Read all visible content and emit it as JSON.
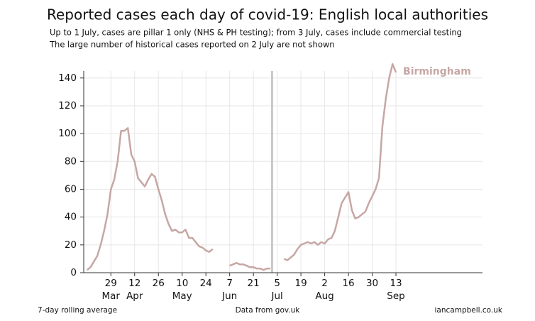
{
  "chart_data": {
    "type": "line",
    "title": "Reported cases each day of covid-19: English local authorities",
    "subtitle": [
      "Up to 1 July, cases are pillar 1 only (NHS & PH testing); from 3 July, cases include commercial testing",
      "The large number of historical cases reported on 2 July are not shown"
    ],
    "footer": {
      "left": "7-day rolling average",
      "center": "Data from gov.uk",
      "right": "iancampbell.co.uk"
    },
    "x": [
      "15 Mar",
      "17 Mar",
      "19 Mar",
      "21 Mar",
      "23 Mar",
      "25 Mar",
      "27 Mar",
      "29 Mar",
      "31 Mar",
      "2 Apr",
      "4 Apr",
      "6 Apr",
      "8 Apr",
      "10 Apr",
      "12 Apr",
      "14 Apr",
      "16 Apr",
      "18 Apr",
      "20 Apr",
      "22 Apr",
      "24 Apr",
      "26 Apr",
      "28 Apr",
      "30 Apr",
      "2 May",
      "4 May",
      "6 May",
      "8 May",
      "10 May",
      "12 May",
      "14 May",
      "16 May",
      "18 May",
      "20 May",
      "22 May",
      "24 May",
      "26 May",
      "28 May",
      "30 May",
      "1 Jun",
      "3 Jun",
      "5 Jun",
      "7 Jun",
      "9 Jun",
      "11 Jun",
      "13 Jun",
      "15 Jun",
      "17 Jun",
      "19 Jun",
      "21 Jun",
      "23 Jun",
      "25 Jun",
      "27 Jun",
      "29 Jun",
      "1 Jul",
      "3 Jul",
      "5 Jul",
      "7 Jul",
      "9 Jul",
      "11 Jul",
      "13 Jul",
      "15 Jul",
      "17 Jul",
      "19 Jul",
      "21 Jul",
      "23 Jul",
      "25 Jul",
      "27 Jul",
      "29 Jul",
      "31 Jul",
      "2 Aug",
      "4 Aug",
      "6 Aug",
      "8 Aug",
      "10 Aug",
      "12 Aug",
      "14 Aug",
      "16 Aug",
      "18 Aug",
      "20 Aug",
      "22 Aug",
      "24 Aug",
      "26 Aug",
      "28 Aug",
      "30 Aug",
      "1 Sep",
      "3 Sep",
      "5 Sep",
      "7 Sep",
      "9 Sep",
      "11 Sep",
      "13 Sep"
    ],
    "series": [
      {
        "name": "Birmingham",
        "color": "#c6a7a4",
        "values": [
          2,
          4,
          8,
          12,
          20,
          30,
          42,
          60,
          67,
          80,
          102,
          102,
          104,
          85,
          80,
          68,
          65,
          62,
          67,
          71,
          69,
          60,
          52,
          42,
          35,
          30,
          31,
          29,
          29,
          31,
          25,
          25,
          22,
          19,
          18,
          16,
          15,
          17,
          null,
          null,
          null,
          null,
          5,
          6,
          7,
          6,
          6,
          5,
          4,
          4,
          3,
          3,
          2,
          3,
          3,
          null,
          null,
          null,
          10,
          9,
          11,
          13,
          17,
          20,
          21,
          22,
          21,
          22,
          20,
          22,
          21,
          24,
          25,
          30,
          40,
          50,
          54,
          58,
          45,
          39,
          40,
          42,
          44,
          50,
          55,
          60,
          68,
          105,
          125,
          140,
          150,
          144
        ]
      }
    ],
    "xlim": [
      "13 Mar",
      "3 Nov"
    ],
    "ylim": [
      0,
      145
    ],
    "yticks": [
      0,
      20,
      40,
      60,
      80,
      100,
      120,
      140
    ],
    "xticks": [
      {
        "value": "29 Mar",
        "label": "29",
        "month": "Mar"
      },
      {
        "value": "12 Apr",
        "label": "12",
        "month": "Apr"
      },
      {
        "value": "26 Apr",
        "label": "26"
      },
      {
        "value": "10 May",
        "label": "10",
        "month": "May"
      },
      {
        "value": "24 May",
        "label": "24"
      },
      {
        "value": "7 Jun",
        "label": "7",
        "month": "Jun"
      },
      {
        "value": "21 Jun",
        "label": "21"
      },
      {
        "value": "5 Jul",
        "label": "5",
        "month": "Jul"
      },
      {
        "value": "19 Jul",
        "label": "19"
      },
      {
        "value": "2 Aug",
        "label": "2",
        "month": "Aug"
      },
      {
        "value": "16 Aug",
        "label": "16"
      },
      {
        "value": "30 Aug",
        "label": "30"
      },
      {
        "value": "13 Sep",
        "label": "13",
        "month": "Sep"
      }
    ],
    "vline": "2 Jul",
    "grid": true
  }
}
